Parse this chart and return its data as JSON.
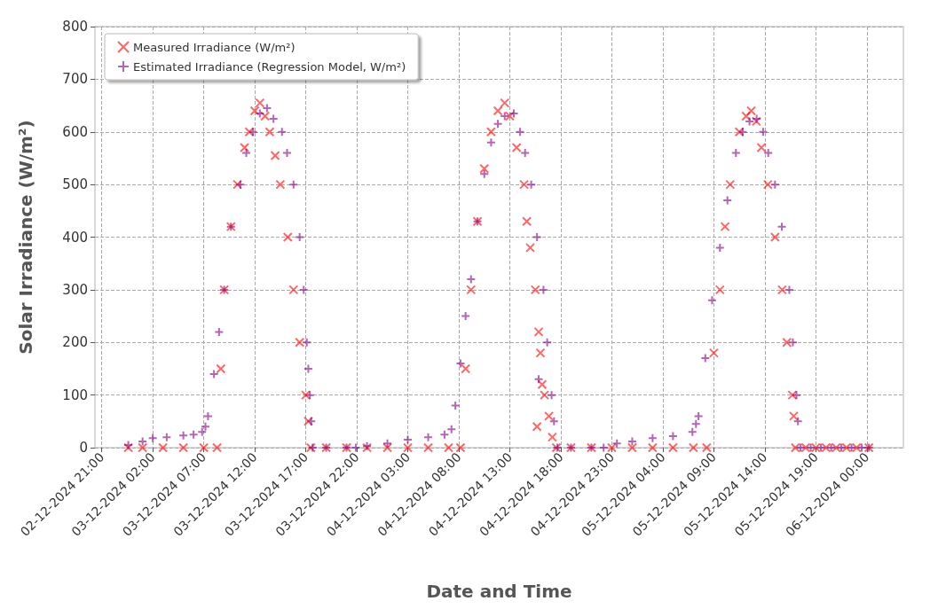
{
  "chart_data": {
    "type": "scatter",
    "xlabel": "Date and Time",
    "ylabel": "Solar Irradiance (W/m²)",
    "marker": "cross",
    "grid": true,
    "legend": "top left",
    "xlim": [
      "2024-12-02T20:20",
      "2024-12-06T03:35"
    ],
    "xticks": [
      {
        "value": "2024-12-02T21:00",
        "label": "02-12-2024 21:00"
      },
      {
        "value": "2024-12-03T02:00",
        "label": "03-12-2024 02:00"
      },
      {
        "value": "2024-12-03T07:00",
        "label": "03-12-2024 07:00"
      },
      {
        "value": "2024-12-03T12:00",
        "label": "03-12-2024 12:00"
      },
      {
        "value": "2024-12-03T17:00",
        "label": "03-12-2024 17:00"
      },
      {
        "value": "2024-12-03T22:00",
        "label": "03-12-2024 22:00"
      },
      {
        "value": "2024-12-04T03:00",
        "label": "04-12-2024 03:00"
      },
      {
        "value": "2024-12-04T08:00",
        "label": "04-12-2024 08:00"
      },
      {
        "value": "2024-12-04T13:00",
        "label": "04-12-2024 13:00"
      },
      {
        "value": "2024-12-04T18:00",
        "label": "04-12-2024 18:00"
      },
      {
        "value": "2024-12-04T23:00",
        "label": "04-12-2024 23:00"
      },
      {
        "value": "2024-12-05T04:00",
        "label": "05-12-2024 04:00"
      },
      {
        "value": "2024-12-05T09:00",
        "label": "05-12-2024 09:00"
      },
      {
        "value": "2024-12-05T14:00",
        "label": "05-12-2024 14:00"
      },
      {
        "value": "2024-12-05T19:00",
        "label": "05-12-2024 19:00"
      },
      {
        "value": "2024-12-06T00:00",
        "label": "06-12-2024 00:00"
      }
    ],
    "ylim": [
      0,
      800
    ],
    "yticks": [
      0,
      100,
      200,
      300,
      400,
      500,
      600,
      700,
      800
    ],
    "series": [
      {
        "name": "Measured Irradiance (W/m²)",
        "color": "#ff0000",
        "x": [
          "2024-12-02T23:36",
          "2024-12-03T01:00",
          "2024-12-03T03:00",
          "2024-12-03T05:00",
          "2024-12-03T07:00",
          "2024-12-03T08:18",
          "2024-12-03T08:40",
          "2024-12-03T09:00",
          "2024-12-03T09:40",
          "2024-12-03T10:18",
          "2024-12-03T11:00",
          "2024-12-03T11:28",
          "2024-12-03T12:00",
          "2024-12-03T12:30",
          "2024-12-03T13:00",
          "2024-12-03T13:28",
          "2024-12-03T14:00",
          "2024-12-03T14:30",
          "2024-12-03T15:14",
          "2024-12-03T15:48",
          "2024-12-03T16:24",
          "2024-12-03T17:00",
          "2024-12-03T17:15",
          "2024-12-03T17:30",
          "2024-12-03T19:00",
          "2024-12-03T21:00",
          "2024-12-03T23:00",
          "2024-12-04T01:00",
          "2024-12-04T03:00",
          "2024-12-04T05:00",
          "2024-12-04T07:00",
          "2024-12-04T08:10",
          "2024-12-04T08:40",
          "2024-12-04T09:12",
          "2024-12-04T09:50",
          "2024-12-04T10:30",
          "2024-12-04T11:10",
          "2024-12-04T11:50",
          "2024-12-04T12:30",
          "2024-12-04T13:00",
          "2024-12-04T13:40",
          "2024-12-04T14:24",
          "2024-12-04T14:40",
          "2024-12-04T15:00",
          "2024-12-04T15:30",
          "2024-12-04T15:40",
          "2024-12-04T15:50",
          "2024-12-04T16:00",
          "2024-12-04T16:10",
          "2024-12-04T16:24",
          "2024-12-04T16:50",
          "2024-12-04T17:10",
          "2024-12-04T17:34",
          "2024-12-04T19:00",
          "2024-12-04T21:00",
          "2024-12-04T23:00",
          "2024-12-05T01:00",
          "2024-12-05T03:00",
          "2024-12-05T05:00",
          "2024-12-05T07:00",
          "2024-12-05T08:18",
          "2024-12-05T09:00",
          "2024-12-05T09:36",
          "2024-12-05T10:06",
          "2024-12-05T10:36",
          "2024-12-05T11:30",
          "2024-12-05T12:10",
          "2024-12-05T12:40",
          "2024-12-05T13:10",
          "2024-12-05T13:40",
          "2024-12-05T14:18",
          "2024-12-05T15:00",
          "2024-12-05T15:42",
          "2024-12-05T16:10",
          "2024-12-05T16:42",
          "2024-12-05T16:50",
          "2024-12-05T17:00",
          "2024-12-05T18:00",
          "2024-12-05T19:00",
          "2024-12-05T20:00",
          "2024-12-05T21:00",
          "2024-12-05T22:00",
          "2024-12-05T23:00",
          "2024-12-06T00:12"
        ],
        "values": [
          0,
          0,
          0,
          0,
          0,
          0,
          150,
          300,
          420,
          500,
          570,
          600,
          640,
          655,
          630,
          600,
          555,
          500,
          400,
          300,
          200,
          100,
          50,
          0,
          0,
          0,
          0,
          0,
          0,
          0,
          0,
          0,
          150,
          300,
          430,
          530,
          600,
          640,
          655,
          630,
          570,
          500,
          430,
          380,
          300,
          40,
          220,
          180,
          120,
          100,
          60,
          20,
          0,
          0,
          0,
          0,
          0,
          0,
          0,
          0,
          0,
          180,
          300,
          420,
          500,
          600,
          630,
          640,
          620,
          570,
          500,
          400,
          300,
          200,
          100,
          60,
          0,
          0,
          0,
          0,
          0,
          0,
          0,
          0
        ]
      },
      {
        "name": "Estimated Irradiance (Regression Model, W/m²)",
        "color": "#800080",
        "x": [
          "2024-12-02T23:36",
          "2024-12-03T01:00",
          "2024-12-03T02:00",
          "2024-12-03T03:22",
          "2024-12-03T05:00",
          "2024-12-03T06:00",
          "2024-12-03T06:50",
          "2024-12-03T07:10",
          "2024-12-03T07:25",
          "2024-12-03T08:00",
          "2024-12-03T08:30",
          "2024-12-03T09:00",
          "2024-12-03T09:40",
          "2024-12-03T10:35",
          "2024-12-03T11:10",
          "2024-12-03T11:50",
          "2024-12-03T12:30",
          "2024-12-03T13:12",
          "2024-12-03T13:50",
          "2024-12-03T14:40",
          "2024-12-03T15:10",
          "2024-12-03T15:48",
          "2024-12-03T16:24",
          "2024-12-03T16:48",
          "2024-12-03T17:06",
          "2024-12-03T17:15",
          "2024-12-03T17:24",
          "2024-12-03T17:32",
          "2024-12-03T17:40",
          "2024-12-03T19:00",
          "2024-12-03T21:00",
          "2024-12-03T21:54",
          "2024-12-03T23:00",
          "2024-12-04T01:00",
          "2024-12-04T03:00",
          "2024-12-04T05:00",
          "2024-12-04T06:36",
          "2024-12-04T07:17",
          "2024-12-04T07:40",
          "2024-12-04T08:10",
          "2024-12-04T08:40",
          "2024-12-04T09:12",
          "2024-12-04T09:50",
          "2024-12-04T10:30",
          "2024-12-04T11:10",
          "2024-12-04T11:50",
          "2024-12-04T12:30",
          "2024-12-04T13:24",
          "2024-12-04T14:00",
          "2024-12-04T14:30",
          "2024-12-04T15:06",
          "2024-12-04T15:40",
          "2024-12-04T15:50",
          "2024-12-04T16:18",
          "2024-12-04T16:40",
          "2024-12-04T17:06",
          "2024-12-04T17:20",
          "2024-12-04T17:40",
          "2024-12-04T19:00",
          "2024-12-04T21:00",
          "2024-12-04T22:12",
          "2024-12-04T23:30",
          "2024-12-05T01:00",
          "2024-12-05T03:00",
          "2024-12-05T05:00",
          "2024-12-05T06:54",
          "2024-12-05T07:15",
          "2024-12-05T07:30",
          "2024-12-05T08:10",
          "2024-12-05T08:50",
          "2024-12-05T09:36",
          "2024-12-05T10:20",
          "2024-12-05T11:10",
          "2024-12-05T11:50",
          "2024-12-05T12:30",
          "2024-12-05T13:12",
          "2024-12-05T13:50",
          "2024-12-05T14:20",
          "2024-12-05T15:00",
          "2024-12-05T15:40",
          "2024-12-05T16:24",
          "2024-12-05T16:45",
          "2024-12-05T17:06",
          "2024-12-05T17:15",
          "2024-12-05T17:30",
          "2024-12-05T18:30",
          "2024-12-05T19:30",
          "2024-12-05T20:30",
          "2024-12-05T21:30",
          "2024-12-05T22:30",
          "2024-12-05T23:30",
          "2024-12-06T00:12"
        ],
        "values": [
          5,
          12,
          18,
          20,
          23,
          25,
          30,
          40,
          60,
          140,
          220,
          300,
          420,
          500,
          560,
          600,
          635,
          645,
          625,
          600,
          560,
          500,
          400,
          300,
          200,
          150,
          100,
          50,
          0,
          0,
          0,
          0,
          3,
          8,
          15,
          20,
          25,
          35,
          80,
          160,
          250,
          320,
          430,
          520,
          580,
          615,
          630,
          635,
          600,
          560,
          500,
          400,
          130,
          300,
          200,
          100,
          50,
          0,
          0,
          0,
          0,
          8,
          12,
          18,
          22,
          30,
          45,
          60,
          170,
          280,
          380,
          470,
          560,
          600,
          620,
          625,
          600,
          560,
          500,
          420,
          300,
          200,
          100,
          50,
          0,
          0,
          0,
          0,
          0,
          0,
          0,
          0
        ]
      }
    ]
  }
}
